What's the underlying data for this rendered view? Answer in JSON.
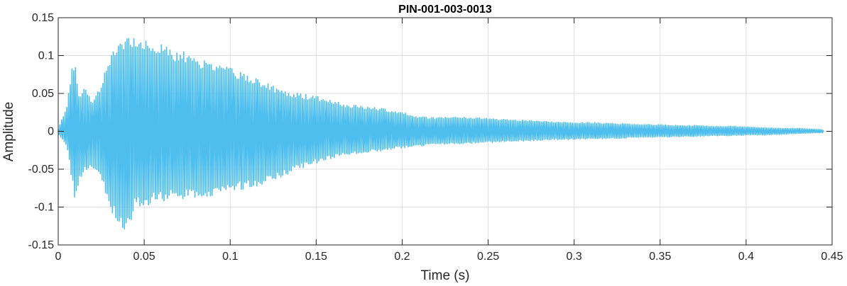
{
  "chart_data": {
    "type": "line",
    "title": "PIN-001-003-0013",
    "xlabel": "Time (s)",
    "ylabel": "Amplitude",
    "xlim": [
      0,
      0.45
    ],
    "ylim": [
      -0.15,
      0.15
    ],
    "xticks": [
      0,
      0.05,
      0.1,
      0.15,
      0.2,
      0.25,
      0.3,
      0.35,
      0.4,
      0.45
    ],
    "xtick_labels": [
      "0",
      "0.05",
      "0.1",
      "0.15",
      "0.2",
      "0.25",
      "0.3",
      "0.35",
      "0.4",
      "0.45"
    ],
    "yticks": [
      -0.15,
      -0.1,
      -0.05,
      0,
      0.05,
      0.1,
      0.15
    ],
    "ytick_labels": [
      "-0.15",
      "-0.1",
      "-0.05",
      "0",
      "0.05",
      "0.1",
      "0.15"
    ],
    "grid": true,
    "line_color": "#4DBEEE",
    "series": [
      {
        "x": [
          0,
          0.005,
          0.008,
          0.01,
          0.012,
          0.015,
          0.02,
          0.025,
          0.03,
          0.035,
          0.04,
          0.045,
          0.05,
          0.055,
          0.06,
          0.065,
          0.07,
          0.075,
          0.08,
          0.085,
          0.09,
          0.095,
          0.1,
          0.11,
          0.12,
          0.13,
          0.14,
          0.15,
          0.16,
          0.17,
          0.18,
          0.19,
          0.2,
          0.21,
          0.22,
          0.23,
          0.24,
          0.25,
          0.26,
          0.27,
          0.28,
          0.29,
          0.3,
          0.31,
          0.32,
          0.33,
          0.34,
          0.35,
          0.36,
          0.37,
          0.38,
          0.39,
          0.4,
          0.41,
          0.42,
          0.43,
          0.44,
          0.445
        ],
        "upper": [
          0.003,
          0.035,
          0.09,
          0.09,
          0.05,
          0.06,
          0.04,
          0.065,
          0.1,
          0.12,
          0.13,
          0.13,
          0.125,
          0.12,
          0.115,
          0.11,
          0.105,
          0.105,
          0.1,
          0.095,
          0.09,
          0.09,
          0.085,
          0.075,
          0.065,
          0.055,
          0.05,
          0.047,
          0.04,
          0.035,
          0.033,
          0.03,
          0.025,
          0.02,
          0.018,
          0.019,
          0.019,
          0.018,
          0.016,
          0.015,
          0.014,
          0.013,
          0.012,
          0.012,
          0.011,
          0.01,
          0.009,
          0.009,
          0.008,
          0.008,
          0.007,
          0.007,
          0.006,
          0.005,
          0.004,
          0.004,
          0.003,
          0.002
        ],
        "lower": [
          -0.003,
          -0.02,
          -0.065,
          -0.095,
          -0.07,
          -0.055,
          -0.05,
          -0.06,
          -0.105,
          -0.12,
          -0.138,
          -0.1,
          -0.1,
          -0.095,
          -0.093,
          -0.09,
          -0.09,
          -0.088,
          -0.087,
          -0.087,
          -0.085,
          -0.082,
          -0.08,
          -0.075,
          -0.07,
          -0.06,
          -0.05,
          -0.042,
          -0.035,
          -0.03,
          -0.028,
          -0.025,
          -0.022,
          -0.02,
          -0.018,
          -0.017,
          -0.016,
          -0.015,
          -0.014,
          -0.013,
          -0.012,
          -0.011,
          -0.011,
          -0.01,
          -0.01,
          -0.009,
          -0.008,
          -0.008,
          -0.007,
          -0.007,
          -0.006,
          -0.006,
          -0.005,
          -0.005,
          -0.004,
          -0.003,
          -0.002,
          -0.002
        ]
      }
    ]
  }
}
